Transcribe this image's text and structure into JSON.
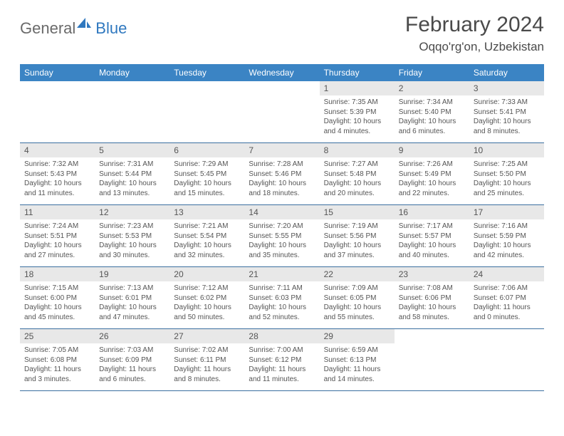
{
  "logo": {
    "general": "General",
    "blue": "Blue"
  },
  "title": "February 2024",
  "location": "Oqqo'rg'on, Uzbekistan",
  "colors": {
    "headerBar": "#3b84c4",
    "weekUnderline": "#3b6fa0",
    "dayNumBg": "#e8e8e8",
    "textGray": "#555",
    "logoGray": "#6a6a6a",
    "logoBlue": "#2f78bf"
  },
  "weekdays": [
    "Sunday",
    "Monday",
    "Tuesday",
    "Wednesday",
    "Thursday",
    "Friday",
    "Saturday"
  ],
  "weeks": [
    [
      null,
      null,
      null,
      null,
      {
        "n": "1",
        "sunrise": "7:35 AM",
        "sunset": "5:39 PM",
        "daylight": "10 hours and 4 minutes."
      },
      {
        "n": "2",
        "sunrise": "7:34 AM",
        "sunset": "5:40 PM",
        "daylight": "10 hours and 6 minutes."
      },
      {
        "n": "3",
        "sunrise": "7:33 AM",
        "sunset": "5:41 PM",
        "daylight": "10 hours and 8 minutes."
      }
    ],
    [
      {
        "n": "4",
        "sunrise": "7:32 AM",
        "sunset": "5:43 PM",
        "daylight": "10 hours and 11 minutes."
      },
      {
        "n": "5",
        "sunrise": "7:31 AM",
        "sunset": "5:44 PM",
        "daylight": "10 hours and 13 minutes."
      },
      {
        "n": "6",
        "sunrise": "7:29 AM",
        "sunset": "5:45 PM",
        "daylight": "10 hours and 15 minutes."
      },
      {
        "n": "7",
        "sunrise": "7:28 AM",
        "sunset": "5:46 PM",
        "daylight": "10 hours and 18 minutes."
      },
      {
        "n": "8",
        "sunrise": "7:27 AM",
        "sunset": "5:48 PM",
        "daylight": "10 hours and 20 minutes."
      },
      {
        "n": "9",
        "sunrise": "7:26 AM",
        "sunset": "5:49 PM",
        "daylight": "10 hours and 22 minutes."
      },
      {
        "n": "10",
        "sunrise": "7:25 AM",
        "sunset": "5:50 PM",
        "daylight": "10 hours and 25 minutes."
      }
    ],
    [
      {
        "n": "11",
        "sunrise": "7:24 AM",
        "sunset": "5:51 PM",
        "daylight": "10 hours and 27 minutes."
      },
      {
        "n": "12",
        "sunrise": "7:23 AM",
        "sunset": "5:53 PM",
        "daylight": "10 hours and 30 minutes."
      },
      {
        "n": "13",
        "sunrise": "7:21 AM",
        "sunset": "5:54 PM",
        "daylight": "10 hours and 32 minutes."
      },
      {
        "n": "14",
        "sunrise": "7:20 AM",
        "sunset": "5:55 PM",
        "daylight": "10 hours and 35 minutes."
      },
      {
        "n": "15",
        "sunrise": "7:19 AM",
        "sunset": "5:56 PM",
        "daylight": "10 hours and 37 minutes."
      },
      {
        "n": "16",
        "sunrise": "7:17 AM",
        "sunset": "5:57 PM",
        "daylight": "10 hours and 40 minutes."
      },
      {
        "n": "17",
        "sunrise": "7:16 AM",
        "sunset": "5:59 PM",
        "daylight": "10 hours and 42 minutes."
      }
    ],
    [
      {
        "n": "18",
        "sunrise": "7:15 AM",
        "sunset": "6:00 PM",
        "daylight": "10 hours and 45 minutes."
      },
      {
        "n": "19",
        "sunrise": "7:13 AM",
        "sunset": "6:01 PM",
        "daylight": "10 hours and 47 minutes."
      },
      {
        "n": "20",
        "sunrise": "7:12 AM",
        "sunset": "6:02 PM",
        "daylight": "10 hours and 50 minutes."
      },
      {
        "n": "21",
        "sunrise": "7:11 AM",
        "sunset": "6:03 PM",
        "daylight": "10 hours and 52 minutes."
      },
      {
        "n": "22",
        "sunrise": "7:09 AM",
        "sunset": "6:05 PM",
        "daylight": "10 hours and 55 minutes."
      },
      {
        "n": "23",
        "sunrise": "7:08 AM",
        "sunset": "6:06 PM",
        "daylight": "10 hours and 58 minutes."
      },
      {
        "n": "24",
        "sunrise": "7:06 AM",
        "sunset": "6:07 PM",
        "daylight": "11 hours and 0 minutes."
      }
    ],
    [
      {
        "n": "25",
        "sunrise": "7:05 AM",
        "sunset": "6:08 PM",
        "daylight": "11 hours and 3 minutes."
      },
      {
        "n": "26",
        "sunrise": "7:03 AM",
        "sunset": "6:09 PM",
        "daylight": "11 hours and 6 minutes."
      },
      {
        "n": "27",
        "sunrise": "7:02 AM",
        "sunset": "6:11 PM",
        "daylight": "11 hours and 8 minutes."
      },
      {
        "n": "28",
        "sunrise": "7:00 AM",
        "sunset": "6:12 PM",
        "daylight": "11 hours and 11 minutes."
      },
      {
        "n": "29",
        "sunrise": "6:59 AM",
        "sunset": "6:13 PM",
        "daylight": "11 hours and 14 minutes."
      },
      null,
      null
    ]
  ],
  "labels": {
    "sunrise": "Sunrise:",
    "sunset": "Sunset:",
    "daylight": "Daylight:"
  }
}
